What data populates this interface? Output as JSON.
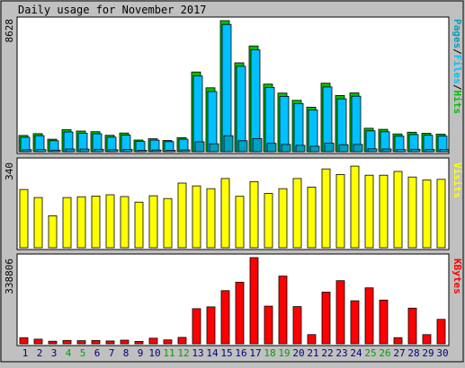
{
  "chart_data": {
    "type": "bar",
    "title": "Daily usage for November 2017",
    "categories": [
      "1",
      "2",
      "3",
      "4",
      "5",
      "6",
      "7",
      "8",
      "9",
      "10",
      "11",
      "12",
      "13",
      "14",
      "15",
      "16",
      "17",
      "18",
      "19",
      "20",
      "21",
      "22",
      "23",
      "24",
      "25",
      "26",
      "27",
      "28",
      "29",
      "30"
    ],
    "weekend_days": [
      "4",
      "5",
      "11",
      "12",
      "18",
      "19",
      "25",
      "26"
    ],
    "panels": [
      {
        "id": "hits",
        "ymax_label": "8628",
        "ymax": 8628,
        "legend": [
          {
            "text": "Pages",
            "color": "#00A0C0"
          },
          {
            "text": "/",
            "color": "#000000"
          },
          {
            "text": "Files",
            "color": "#00C0FF"
          },
          {
            "text": "/",
            "color": "#000000"
          },
          {
            "text": "Hits",
            "color": "#00C000"
          }
        ],
        "series": [
          {
            "name": "Hits",
            "color": "#00C000",
            "values": [
              1070,
              1190,
              820,
              1450,
              1360,
              1320,
              1080,
              1230,
              770,
              850,
              740,
              920,
              5250,
              4210,
              8630,
              5850,
              6960,
              4450,
              3860,
              3380,
              2930,
              4510,
              3700,
              3870,
              1540,
              1470,
              1170,
              1280,
              1210,
              1160
            ]
          },
          {
            "name": "Files",
            "color": "#00C0FF",
            "values": [
              950,
              1060,
              720,
              1300,
              1220,
              1180,
              960,
              1090,
              680,
              760,
              660,
              820,
              4980,
              3960,
              8380,
              5620,
              6700,
              4230,
              3640,
              3170,
              2750,
              4260,
              3480,
              3650,
              1370,
              1310,
              1020,
              1130,
              1080,
              1030
            ]
          },
          {
            "name": "Pages",
            "color": "#00A0C0",
            "values": [
              130,
              140,
              100,
              180,
              170,
              160,
              130,
              150,
              90,
              110,
              90,
              120,
              650,
              520,
              1050,
              720,
              860,
              550,
              480,
              420,
              360,
              560,
              460,
              480,
              190,
              180,
              140,
              160,
              150,
              140
            ]
          }
        ]
      },
      {
        "id": "visits",
        "ymax_label": "340",
        "ymax": 340,
        "legend": [
          {
            "text": "Visits",
            "color": "#FFFF00"
          }
        ],
        "series": [
          {
            "name": "Visits",
            "color": "#FFFF00",
            "values": [
              230,
              198,
              126,
              198,
              201,
              204,
              209,
              202,
              180,
              205,
              194,
              255,
              244,
              233,
              273,
              203,
              261,
              214,
              233,
              273,
              239,
              311,
              289,
              322,
              286,
              286,
              301,
              279,
              267,
              270
            ]
          }
        ]
      },
      {
        "id": "kbytes",
        "ymax_label": "338806",
        "ymax": 338806,
        "legend": [
          {
            "text": "KBytes",
            "color": "#FF0000"
          }
        ],
        "series": [
          {
            "name": "KBytes",
            "color": "#FF0000",
            "values": [
              24000,
              18000,
              10000,
              13000,
              12000,
              13000,
              11000,
              14000,
              9000,
              22000,
              15000,
              25000,
              138000,
              145000,
              209000,
              242000,
              338806,
              148000,
              266000,
              146000,
              36000,
              203000,
              248000,
              169000,
              220000,
              172000,
              24000,
              140000,
              36000,
              96000
            ]
          }
        ]
      }
    ],
    "colors": {
      "background": "#C0C0C0",
      "plot_background": "#FFFFFF",
      "weekday_label": "#000080",
      "weekend_label": "#00A000"
    }
  }
}
